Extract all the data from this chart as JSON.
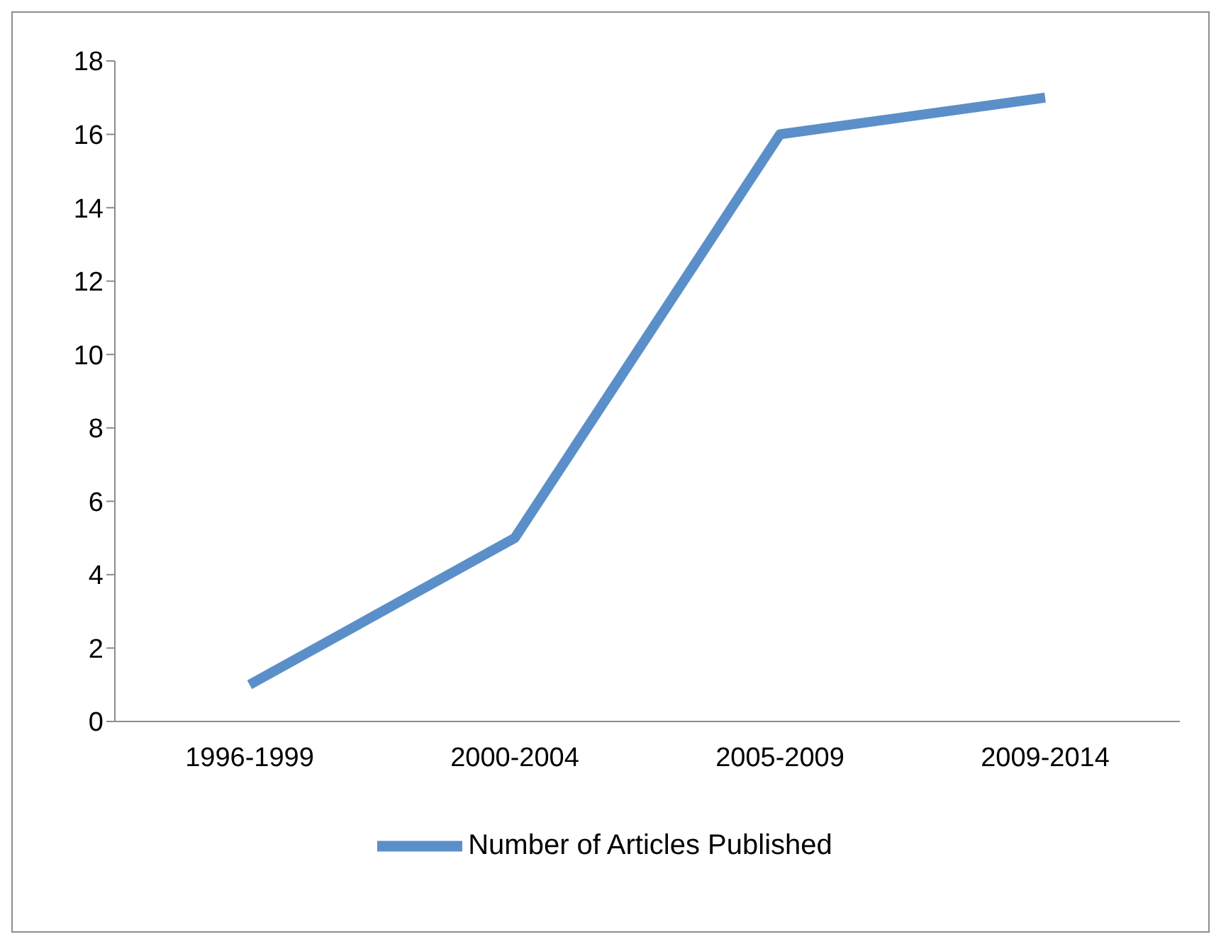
{
  "chart_data": {
    "type": "line",
    "categories": [
      "1996-1999",
      "2000-2004",
      "2005-2009",
      "2009-2014"
    ],
    "series": [
      {
        "name": "Number of Articles Published",
        "color": "#5b8fc9",
        "values": [
          1,
          5,
          16,
          17
        ]
      }
    ],
    "ylim": [
      0,
      18
    ],
    "yticks": [
      0,
      2,
      4,
      6,
      8,
      10,
      12,
      14,
      16,
      18
    ],
    "grid": false,
    "legend": "bottom",
    "marker": "none",
    "line_style": "solid"
  }
}
